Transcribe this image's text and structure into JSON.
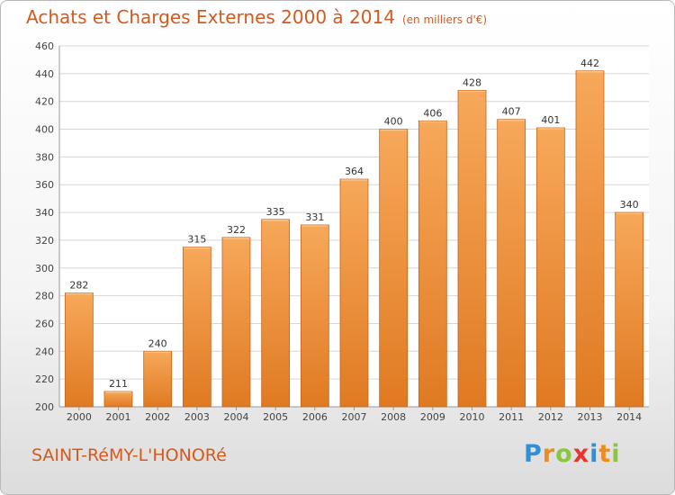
{
  "header": {
    "title": "Achats et Charges Externes 2000 à 2014",
    "subtitle": "(en milliers d'€)"
  },
  "footer": {
    "commune": "SAINT-RéMY-L'HONORé",
    "brand_letters": [
      "P",
      "r",
      "o",
      "x",
      "i",
      "t",
      "i"
    ],
    "brand_colors": [
      "#2f8fd8",
      "#f08a1c",
      "#8cc63f",
      "#e8342e",
      "#2f8fd8",
      "#f08a1c",
      "#8cc63f"
    ]
  },
  "chart_data": {
    "type": "bar",
    "title": "Achats et Charges Externes 2000 à 2014",
    "subtitle": "(en milliers d'€)",
    "categories": [
      "2000",
      "2001",
      "2002",
      "2003",
      "2004",
      "2005",
      "2006",
      "2007",
      "2008",
      "2009",
      "2010",
      "2011",
      "2012",
      "2013",
      "2014"
    ],
    "values": [
      282,
      211,
      240,
      315,
      322,
      335,
      331,
      364,
      400,
      406,
      428,
      407,
      401,
      442,
      340
    ],
    "ylim": [
      200,
      460
    ],
    "yticks": [
      200,
      220,
      240,
      260,
      280,
      300,
      320,
      340,
      360,
      380,
      400,
      420,
      440,
      460
    ],
    "grid": true,
    "bar_color": "#f0913a",
    "bar_edge_color": "#c8641c"
  }
}
